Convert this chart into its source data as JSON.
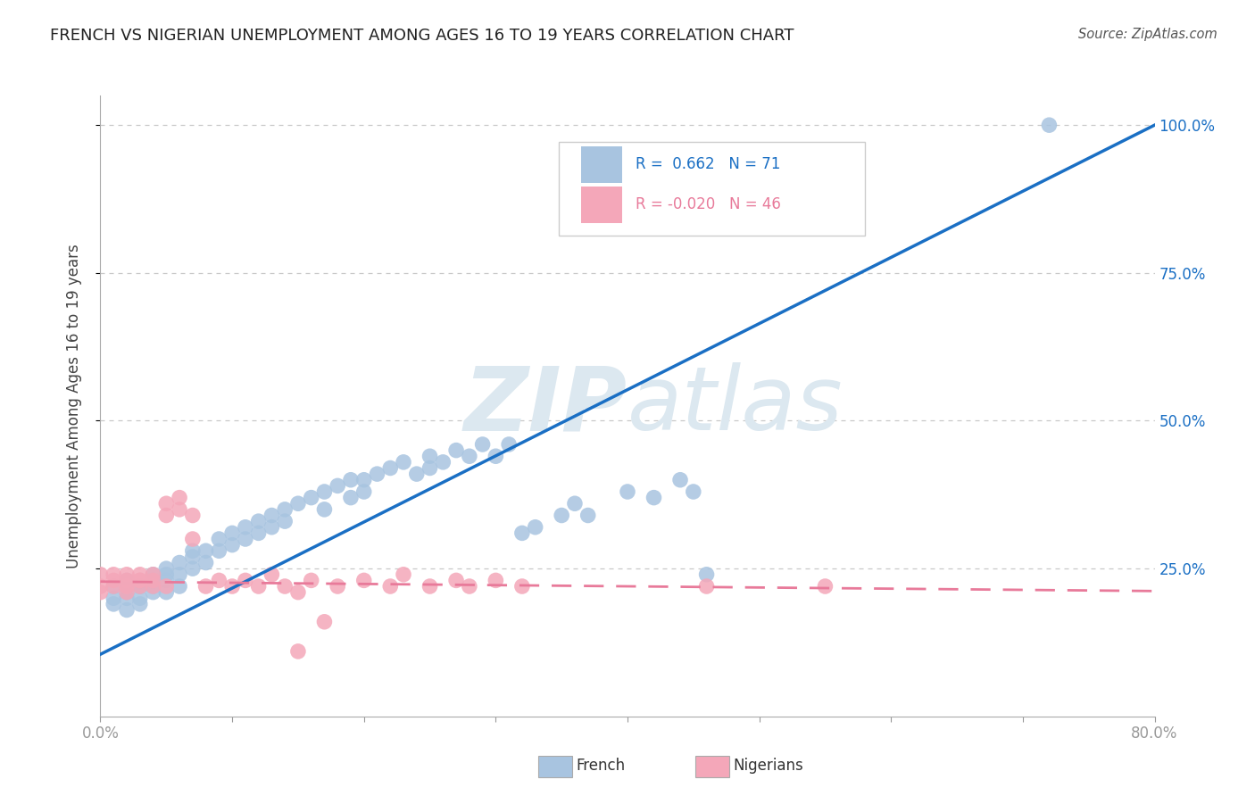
{
  "title": "FRENCH VS NIGERIAN UNEMPLOYMENT AMONG AGES 16 TO 19 YEARS CORRELATION CHART",
  "source": "Source: ZipAtlas.com",
  "ylabel": "Unemployment Among Ages 16 to 19 years",
  "xlim": [
    0.0,
    0.8
  ],
  "ylim": [
    0.0,
    1.05
  ],
  "xticks": [
    0.0,
    0.1,
    0.2,
    0.3,
    0.4,
    0.5,
    0.6,
    0.7,
    0.8
  ],
  "xticklabels": [
    "0.0%",
    "",
    "",
    "",
    "",
    "",
    "",
    "",
    "80.0%"
  ],
  "ytick_positions": [
    0.25,
    0.5,
    0.75,
    1.0
  ],
  "yticklabels": [
    "25.0%",
    "50.0%",
    "75.0%",
    "100.0%"
  ],
  "french_color": "#a8c4e0",
  "nigerian_color": "#f4a7b9",
  "french_line_color": "#1a6fc4",
  "nigerian_line_color": "#e87a9a",
  "R_french": 0.662,
  "N_french": 71,
  "R_nigerian": -0.02,
  "N_nigerian": 46,
  "french_scatter": [
    [
      0.01,
      0.2
    ],
    [
      0.01,
      0.22
    ],
    [
      0.01,
      0.19
    ],
    [
      0.02,
      0.21
    ],
    [
      0.02,
      0.23
    ],
    [
      0.02,
      0.18
    ],
    [
      0.02,
      0.2
    ],
    [
      0.03,
      0.22
    ],
    [
      0.03,
      0.2
    ],
    [
      0.03,
      0.19
    ],
    [
      0.03,
      0.22
    ],
    [
      0.04,
      0.23
    ],
    [
      0.04,
      0.21
    ],
    [
      0.04,
      0.24
    ],
    [
      0.04,
      0.22
    ],
    [
      0.05,
      0.25
    ],
    [
      0.05,
      0.23
    ],
    [
      0.05,
      0.21
    ],
    [
      0.05,
      0.24
    ],
    [
      0.06,
      0.26
    ],
    [
      0.06,
      0.24
    ],
    [
      0.06,
      0.22
    ],
    [
      0.07,
      0.27
    ],
    [
      0.07,
      0.25
    ],
    [
      0.07,
      0.28
    ],
    [
      0.08,
      0.28
    ],
    [
      0.08,
      0.26
    ],
    [
      0.09,
      0.28
    ],
    [
      0.09,
      0.3
    ],
    [
      0.1,
      0.29
    ],
    [
      0.1,
      0.31
    ],
    [
      0.11,
      0.3
    ],
    [
      0.11,
      0.32
    ],
    [
      0.12,
      0.33
    ],
    [
      0.12,
      0.31
    ],
    [
      0.13,
      0.34
    ],
    [
      0.13,
      0.32
    ],
    [
      0.14,
      0.35
    ],
    [
      0.14,
      0.33
    ],
    [
      0.15,
      0.36
    ],
    [
      0.16,
      0.37
    ],
    [
      0.17,
      0.35
    ],
    [
      0.17,
      0.38
    ],
    [
      0.18,
      0.39
    ],
    [
      0.19,
      0.37
    ],
    [
      0.19,
      0.4
    ],
    [
      0.2,
      0.4
    ],
    [
      0.2,
      0.38
    ],
    [
      0.21,
      0.41
    ],
    [
      0.22,
      0.42
    ],
    [
      0.23,
      0.43
    ],
    [
      0.24,
      0.41
    ],
    [
      0.25,
      0.44
    ],
    [
      0.25,
      0.42
    ],
    [
      0.26,
      0.43
    ],
    [
      0.27,
      0.45
    ],
    [
      0.28,
      0.44
    ],
    [
      0.29,
      0.46
    ],
    [
      0.3,
      0.44
    ],
    [
      0.31,
      0.46
    ],
    [
      0.32,
      0.31
    ],
    [
      0.33,
      0.32
    ],
    [
      0.35,
      0.34
    ],
    [
      0.36,
      0.36
    ],
    [
      0.37,
      0.34
    ],
    [
      0.4,
      0.38
    ],
    [
      0.42,
      0.37
    ],
    [
      0.44,
      0.4
    ],
    [
      0.45,
      0.38
    ],
    [
      0.46,
      0.24
    ],
    [
      0.72,
      1.0
    ]
  ],
  "nigerian_scatter": [
    [
      0.0,
      0.22
    ],
    [
      0.0,
      0.24
    ],
    [
      0.0,
      0.21
    ],
    [
      0.01,
      0.23
    ],
    [
      0.01,
      0.22
    ],
    [
      0.01,
      0.24
    ],
    [
      0.02,
      0.23
    ],
    [
      0.02,
      0.22
    ],
    [
      0.02,
      0.24
    ],
    [
      0.02,
      0.21
    ],
    [
      0.03,
      0.23
    ],
    [
      0.03,
      0.22
    ],
    [
      0.03,
      0.24
    ],
    [
      0.03,
      0.23
    ],
    [
      0.04,
      0.22
    ],
    [
      0.04,
      0.24
    ],
    [
      0.04,
      0.23
    ],
    [
      0.05,
      0.22
    ],
    [
      0.05,
      0.34
    ],
    [
      0.05,
      0.36
    ],
    [
      0.06,
      0.35
    ],
    [
      0.06,
      0.37
    ],
    [
      0.07,
      0.34
    ],
    [
      0.07,
      0.3
    ],
    [
      0.08,
      0.22
    ],
    [
      0.09,
      0.23
    ],
    [
      0.1,
      0.22
    ],
    [
      0.11,
      0.23
    ],
    [
      0.12,
      0.22
    ],
    [
      0.13,
      0.24
    ],
    [
      0.14,
      0.22
    ],
    [
      0.15,
      0.21
    ],
    [
      0.16,
      0.23
    ],
    [
      0.17,
      0.16
    ],
    [
      0.18,
      0.22
    ],
    [
      0.2,
      0.23
    ],
    [
      0.22,
      0.22
    ],
    [
      0.23,
      0.24
    ],
    [
      0.25,
      0.22
    ],
    [
      0.27,
      0.23
    ],
    [
      0.28,
      0.22
    ],
    [
      0.3,
      0.23
    ],
    [
      0.32,
      0.22
    ],
    [
      0.46,
      0.22
    ],
    [
      0.55,
      0.22
    ],
    [
      0.15,
      0.11
    ]
  ],
  "french_line_x": [
    0.0,
    0.8
  ],
  "french_line_y": [
    0.105,
    1.0
  ],
  "nigerian_line_x": [
    0.0,
    0.8
  ],
  "nigerian_line_y": [
    0.228,
    0.212
  ],
  "watermark_zip": "ZIP",
  "watermark_atlas": "atlas",
  "watermark_color": "#dce8f0",
  "background_color": "#ffffff",
  "grid_color": "#cccccc",
  "legend_r_french": "R =  0.662   N = 71",
  "legend_r_nigerian": "R = -0.020   N = 46"
}
